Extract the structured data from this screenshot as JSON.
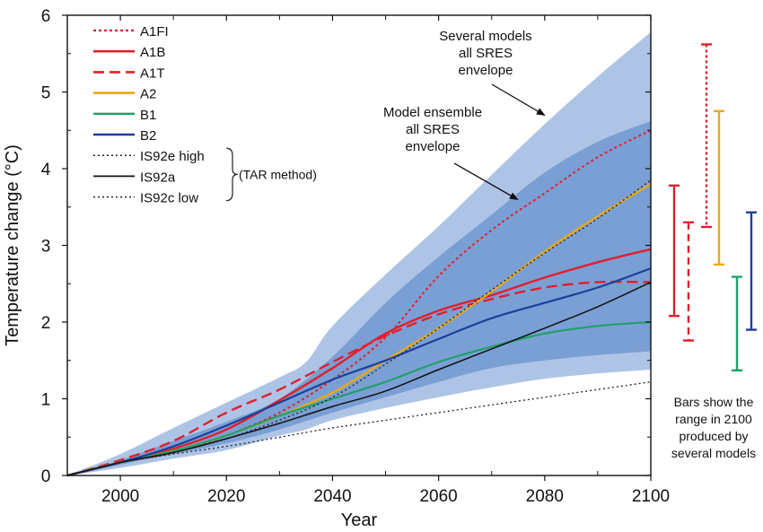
{
  "chart_data": {
    "type": "line",
    "xlabel": "Year",
    "ylabel": "Temperature change (°C)",
    "xlim": [
      1990,
      2100
    ],
    "ylim": [
      0,
      6
    ],
    "x_ticks": [
      2000,
      2020,
      2040,
      2060,
      2080,
      2100
    ],
    "y_ticks": [
      0,
      1,
      2,
      3,
      4,
      5,
      6
    ],
    "envelopes": [
      {
        "name": "Several models all SRES envelope",
        "color": "#aec4e6",
        "x": [
          1990,
          2000,
          2010,
          2020,
          2030,
          2035,
          2040,
          2050,
          2060,
          2070,
          2080,
          2090,
          2100
        ],
        "upper": [
          0,
          0.28,
          0.62,
          0.95,
          1.28,
          1.48,
          1.95,
          2.62,
          3.25,
          3.92,
          4.58,
          5.2,
          5.78
        ],
        "lower": [
          0,
          0.1,
          0.22,
          0.33,
          0.52,
          0.6,
          0.72,
          0.88,
          1.02,
          1.15,
          1.26,
          1.33,
          1.38
        ]
      },
      {
        "name": "Model ensemble all SRES envelope",
        "color": "#7a9fd4",
        "x": [
          1990,
          2000,
          2010,
          2020,
          2030,
          2040,
          2050,
          2060,
          2070,
          2080,
          2090,
          2100
        ],
        "upper": [
          0,
          0.2,
          0.45,
          0.7,
          1.0,
          1.55,
          2.25,
          2.85,
          3.4,
          3.95,
          4.35,
          4.62
        ],
        "lower": [
          0,
          0.14,
          0.28,
          0.42,
          0.6,
          0.82,
          1.02,
          1.22,
          1.4,
          1.5,
          1.57,
          1.62
        ]
      }
    ],
    "series": [
      {
        "name": "A1FI",
        "color": "#e0202c",
        "dash": "3,3",
        "width": 2,
        "x": [
          1990,
          2000,
          2010,
          2020,
          2030,
          2040,
          2050,
          2060,
          2070,
          2080,
          2090,
          2100
        ],
        "values": [
          0,
          0.17,
          0.3,
          0.52,
          0.82,
          1.25,
          1.8,
          2.6,
          3.2,
          3.68,
          4.15,
          4.5
        ]
      },
      {
        "name": "A1B",
        "color": "#e0202c",
        "dash": "",
        "width": 2.4,
        "x": [
          1990,
          2000,
          2010,
          2020,
          2030,
          2040,
          2050,
          2060,
          2070,
          2080,
          2090,
          2100
        ],
        "values": [
          0,
          0.17,
          0.35,
          0.6,
          0.98,
          1.4,
          1.85,
          2.15,
          2.35,
          2.58,
          2.78,
          2.95
        ]
      },
      {
        "name": "A1T",
        "color": "#e0202c",
        "dash": "12,6",
        "width": 2.4,
        "x": [
          1990,
          2000,
          2010,
          2020,
          2030,
          2040,
          2050,
          2060,
          2070,
          2080,
          2090,
          2100
        ],
        "values": [
          0,
          0.2,
          0.45,
          0.82,
          1.12,
          1.48,
          1.82,
          2.1,
          2.3,
          2.45,
          2.52,
          2.52
        ]
      },
      {
        "name": "A2",
        "color": "#e8a818",
        "dash": "",
        "width": 2.4,
        "x": [
          1990,
          2000,
          2010,
          2020,
          2030,
          2040,
          2050,
          2060,
          2070,
          2080,
          2090,
          2100
        ],
        "values": [
          0,
          0.17,
          0.32,
          0.52,
          0.78,
          1.08,
          1.5,
          1.92,
          2.4,
          2.92,
          3.38,
          3.8
        ]
      },
      {
        "name": "B1",
        "color": "#20a06a",
        "dash": "",
        "width": 2.2,
        "x": [
          1990,
          2000,
          2010,
          2020,
          2030,
          2040,
          2050,
          2060,
          2070,
          2080,
          2090,
          2100
        ],
        "values": [
          0,
          0.17,
          0.32,
          0.52,
          0.78,
          1.0,
          1.22,
          1.48,
          1.68,
          1.85,
          1.95,
          2.0
        ]
      },
      {
        "name": "B2",
        "color": "#1c3f9a",
        "dash": "",
        "width": 2.2,
        "x": [
          1990,
          2000,
          2010,
          2020,
          2030,
          2040,
          2050,
          2060,
          2070,
          2080,
          2090,
          2100
        ],
        "values": [
          0,
          0.17,
          0.38,
          0.65,
          0.95,
          1.25,
          1.5,
          1.78,
          2.05,
          2.25,
          2.45,
          2.7
        ]
      },
      {
        "name": "IS92e high",
        "color": "#222222",
        "dash": "2,3",
        "width": 1.3,
        "x": [
          1990,
          2000,
          2010,
          2020,
          2030,
          2040,
          2050,
          2060,
          2070,
          2080,
          2090,
          2100
        ],
        "values": [
          0,
          0.17,
          0.3,
          0.48,
          0.72,
          1.02,
          1.45,
          1.92,
          2.42,
          2.9,
          3.35,
          3.85
        ]
      },
      {
        "name": "IS92a",
        "color": "#111111",
        "dash": "",
        "width": 1.5,
        "x": [
          1990,
          2000,
          2010,
          2020,
          2030,
          2040,
          2050,
          2060,
          2070,
          2080,
          2090,
          2100
        ],
        "values": [
          0,
          0.17,
          0.3,
          0.48,
          0.68,
          0.9,
          1.1,
          1.38,
          1.65,
          1.92,
          2.2,
          2.52
        ]
      },
      {
        "name": "IS92c low",
        "color": "#222222",
        "dash": "2,3",
        "width": 1.3,
        "x": [
          1990,
          2000,
          2010,
          2020,
          2030,
          2040,
          2050,
          2060,
          2070,
          2080,
          2090,
          2100
        ],
        "values": [
          0,
          0.17,
          0.28,
          0.38,
          0.5,
          0.62,
          0.72,
          0.82,
          0.92,
          1.02,
          1.12,
          1.22
        ]
      }
    ],
    "legend": {
      "entries": [
        "A1FI",
        "A1B",
        "A1T",
        "A2",
        "B1",
        "B2",
        "IS92e high",
        "IS92a",
        "IS92c low"
      ],
      "group_label": "(TAR method)"
    },
    "annotations": [
      {
        "id": "several-models",
        "lines": [
          "Several models",
          "all SRES",
          "envelope"
        ]
      },
      {
        "id": "model-ensemble",
        "lines": [
          "Model ensemble",
          "all SRES",
          "envelope"
        ]
      }
    ],
    "range_bars": {
      "title_lines": [
        "Bars show the",
        "range in 2100",
        "produced by",
        "several models"
      ],
      "bars": [
        {
          "scenario": "A1B",
          "color": "#e0202c",
          "dash": "",
          "low": 2.08,
          "high": 3.78
        },
        {
          "scenario": "A1T",
          "color": "#e0202c",
          "dash": "8,5",
          "low": 1.76,
          "high": 3.3
        },
        {
          "scenario": "A1FI",
          "color": "#e0202c",
          "dash": "3,3",
          "low": 3.24,
          "high": 5.62
        },
        {
          "scenario": "A2",
          "color": "#e8a818",
          "dash": "",
          "low": 2.75,
          "high": 4.75
        },
        {
          "scenario": "B1",
          "color": "#20a06a",
          "dash": "",
          "low": 1.37,
          "high": 2.59
        },
        {
          "scenario": "B2",
          "color": "#1c3f9a",
          "dash": "",
          "low": 1.9,
          "high": 3.43
        }
      ]
    }
  }
}
